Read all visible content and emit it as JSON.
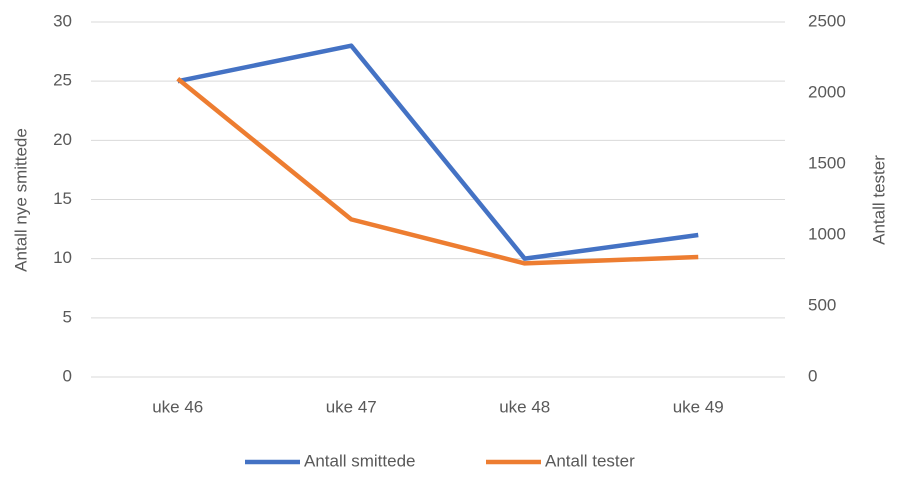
{
  "chart_data": {
    "type": "line",
    "categories": [
      "uke 46",
      "uke 47",
      "uke 48",
      "uke 49"
    ],
    "series": [
      {
        "name": "Antall smittede",
        "color": "#4472c4",
        "values": [
          25,
          28,
          10,
          12
        ]
      },
      {
        "name": "Antall tester",
        "color": "#ed7d31",
        "values": [
          2100,
          1110,
          800,
          845
        ],
        "axis": "y2"
      }
    ],
    "ylabel": "Antall nye smittede",
    "y2label": "Antall tester",
    "ylim": [
      0,
      30
    ],
    "yticks": [
      0,
      5,
      10,
      15,
      20,
      25,
      30
    ],
    "y2lim": [
      0,
      2500
    ],
    "y2ticks": [
      0,
      500,
      1000,
      1500,
      2000,
      2500
    ],
    "grid": true,
    "legend": "bottom"
  }
}
